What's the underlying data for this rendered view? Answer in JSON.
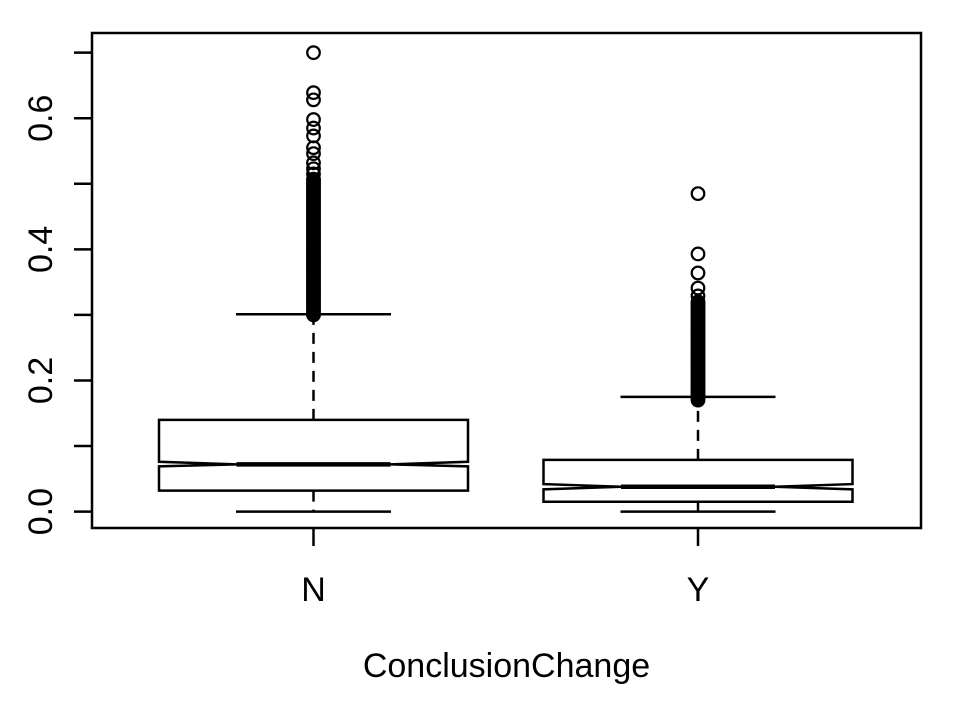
{
  "chart_data": {
    "type": "boxplot",
    "orientation": "vertical",
    "notched": true,
    "title": "",
    "xlabel": "ConclusionChange",
    "ylabel": "",
    "grid": false,
    "legend": null,
    "categories": [
      "N",
      "Y"
    ],
    "ylim": [
      -0.025,
      0.73
    ],
    "yticks": [
      {
        "value": 0.0,
        "label": "0.0"
      },
      {
        "value": 0.1,
        "label": ""
      },
      {
        "value": 0.2,
        "label": "0.2"
      },
      {
        "value": 0.3,
        "label": ""
      },
      {
        "value": 0.4,
        "label": "0.4"
      },
      {
        "value": 0.5,
        "label": ""
      },
      {
        "value": 0.6,
        "label": "0.6"
      },
      {
        "value": 0.7,
        "label": ""
      }
    ],
    "series": [
      {
        "name": "N",
        "stats": {
          "whisker_low": 0.0,
          "q1": 0.032,
          "median": 0.072,
          "q3": 0.14,
          "whisker_high": 0.301,
          "notch_low": 0.069,
          "notch_high": 0.076
        },
        "outliers": [
          0.7,
          0.639,
          0.628,
          0.598,
          0.585,
          0.573,
          0.555,
          0.546,
          0.532,
          0.523,
          0.515,
          0.507,
          0.504,
          0.501,
          0.498,
          0.495,
          0.492,
          0.489,
          0.486,
          0.483,
          0.48,
          0.477,
          0.474,
          0.471,
          0.468,
          0.465,
          0.462,
          0.459,
          0.456,
          0.453,
          0.45,
          0.447,
          0.444,
          0.441,
          0.438,
          0.435,
          0.432,
          0.429,
          0.426,
          0.423,
          0.42,
          0.417,
          0.414,
          0.411,
          0.408,
          0.405,
          0.402,
          0.399,
          0.396,
          0.393,
          0.39,
          0.387,
          0.384,
          0.381,
          0.378,
          0.375,
          0.372,
          0.369,
          0.366,
          0.363,
          0.36,
          0.357,
          0.354,
          0.351,
          0.348,
          0.345,
          0.342,
          0.339,
          0.336,
          0.333,
          0.33,
          0.327,
          0.324,
          0.321,
          0.318,
          0.315,
          0.312,
          0.309,
          0.306,
          0.303,
          0.3
        ]
      },
      {
        "name": "Y",
        "stats": {
          "whisker_low": 0.0,
          "q1": 0.015,
          "median": 0.038,
          "q3": 0.079,
          "whisker_high": 0.175,
          "notch_low": 0.034,
          "notch_high": 0.042
        },
        "outliers": [
          0.485,
          0.393,
          0.364,
          0.341,
          0.329,
          0.32,
          0.317,
          0.314,
          0.311,
          0.308,
          0.305,
          0.302,
          0.299,
          0.296,
          0.293,
          0.29,
          0.287,
          0.284,
          0.281,
          0.278,
          0.275,
          0.272,
          0.269,
          0.266,
          0.263,
          0.26,
          0.257,
          0.254,
          0.251,
          0.248,
          0.245,
          0.242,
          0.239,
          0.236,
          0.233,
          0.23,
          0.227,
          0.224,
          0.221,
          0.218,
          0.215,
          0.212,
          0.209,
          0.206,
          0.203,
          0.2,
          0.197,
          0.194,
          0.191,
          0.188,
          0.185,
          0.182,
          0.179,
          0.176,
          0.173,
          0.17
        ]
      }
    ]
  },
  "colors": {
    "stroke": "#000000",
    "background": "#ffffff",
    "box_fill": "#ffffff"
  }
}
